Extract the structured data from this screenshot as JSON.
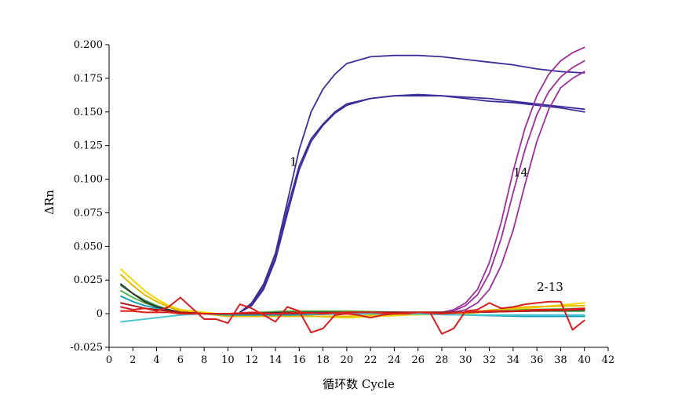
{
  "chart_data": {
    "type": "line",
    "title": "",
    "xlabel": "循环数 Cycle",
    "ylabel": "ΔRn",
    "xlim": [
      0,
      42
    ],
    "ylim": [
      -0.025,
      0.2
    ],
    "x_ticks": [
      "0",
      "2",
      "4",
      "6",
      "8",
      "10",
      "12",
      "14",
      "16",
      "18",
      "20",
      "22",
      "24",
      "26",
      "28",
      "30",
      "32",
      "34",
      "36",
      "38",
      "40",
      "42"
    ],
    "y_ticks": [
      "0.200",
      "0.175",
      "0.150",
      "0.125",
      "0.100",
      "0.075",
      "0.050",
      "0.025",
      "0",
      "-0.025"
    ],
    "grid": false,
    "annotations": [
      {
        "text": "1",
        "x": 15.2,
        "y": 0.11
      },
      {
        "text": "14",
        "x": 34.0,
        "y": 0.102
      },
      {
        "text": "2-13",
        "x": 36.0,
        "y": 0.017
      }
    ],
    "series": [
      {
        "group": "1",
        "color": "#3d2f99",
        "x": [
          11,
          12,
          13,
          14,
          15,
          16,
          17,
          18,
          19,
          20,
          22,
          24,
          26,
          28,
          30,
          32,
          34,
          36,
          38,
          40
        ],
        "y": [
          0.001,
          0.008,
          0.022,
          0.045,
          0.083,
          0.122,
          0.15,
          0.167,
          0.178,
          0.186,
          0.191,
          0.192,
          0.192,
          0.191,
          0.189,
          0.187,
          0.185,
          0.182,
          0.18,
          0.179
        ]
      },
      {
        "group": "1",
        "color": "#3d2f99",
        "x": [
          11,
          12,
          13,
          14,
          15,
          16,
          17,
          18,
          19,
          20,
          22,
          24,
          26,
          28,
          30,
          32,
          34,
          36,
          38,
          40
        ],
        "y": [
          0.001,
          0.007,
          0.02,
          0.042,
          0.078,
          0.11,
          0.13,
          0.141,
          0.15,
          0.156,
          0.16,
          0.162,
          0.163,
          0.162,
          0.161,
          0.16,
          0.158,
          0.156,
          0.154,
          0.152
        ]
      },
      {
        "group": "1",
        "color": "#3d2f99",
        "x": [
          11,
          12,
          13,
          14,
          15,
          16,
          17,
          18,
          19,
          20,
          22,
          24,
          26,
          28,
          30,
          32,
          34,
          36,
          38,
          40
        ],
        "y": [
          0.001,
          0.006,
          0.018,
          0.04,
          0.074,
          0.107,
          0.128,
          0.14,
          0.149,
          0.155,
          0.16,
          0.162,
          0.162,
          0.162,
          0.16,
          0.158,
          0.157,
          0.155,
          0.153,
          0.15
        ]
      },
      {
        "group": "14",
        "color": "#9b2f9b",
        "x": [
          27,
          28,
          29,
          30,
          31,
          32,
          33,
          34,
          35,
          36,
          37,
          38,
          39,
          40
        ],
        "y": [
          0.0,
          0.001,
          0.003,
          0.008,
          0.018,
          0.038,
          0.068,
          0.106,
          0.138,
          0.162,
          0.178,
          0.188,
          0.194,
          0.198
        ]
      },
      {
        "group": "14",
        "color": "#9b2f9b",
        "x": [
          27,
          28,
          29,
          30,
          31,
          32,
          33,
          34,
          35,
          36,
          37,
          38,
          39,
          40
        ],
        "y": [
          0.0,
          0.001,
          0.002,
          0.006,
          0.014,
          0.03,
          0.056,
          0.09,
          0.122,
          0.148,
          0.165,
          0.176,
          0.183,
          0.188
        ]
      },
      {
        "group": "14",
        "color": "#9b2f9b",
        "x": [
          27,
          28,
          29,
          30,
          31,
          32,
          33,
          34,
          35,
          36,
          37,
          38,
          39,
          40
        ],
        "y": [
          0.0,
          0.0,
          0.001,
          0.003,
          0.008,
          0.018,
          0.036,
          0.062,
          0.096,
          0.128,
          0.152,
          0.168,
          0.175,
          0.18
        ]
      },
      {
        "group": "2-13",
        "color": "#f2d600",
        "x": [
          1,
          2,
          3,
          4,
          5,
          6,
          8,
          10,
          15,
          20,
          25,
          30,
          35,
          40
        ],
        "y": [
          0.033,
          0.025,
          0.017,
          0.011,
          0.006,
          0.003,
          0.001,
          -0.001,
          -0.001,
          -0.003,
          -0.001,
          0.0,
          0.004,
          0.008
        ]
      },
      {
        "group": "2-13",
        "color": "#e8b800",
        "x": [
          1,
          2,
          3,
          4,
          5,
          6,
          8,
          10,
          15,
          20,
          25,
          30,
          35,
          40
        ],
        "y": [
          0.029,
          0.021,
          0.014,
          0.009,
          0.005,
          0.002,
          0.0,
          -0.002,
          -0.002,
          -0.002,
          0.0,
          0.001,
          0.005,
          0.006
        ]
      },
      {
        "group": "2-13",
        "color": "#2e9e4a",
        "x": [
          1,
          2,
          3,
          4,
          5,
          6,
          8,
          10,
          15,
          20,
          25,
          30,
          35,
          40
        ],
        "y": [
          0.021,
          0.015,
          0.01,
          0.006,
          0.003,
          0.001,
          0.0,
          0.0,
          0.001,
          0.001,
          0.0,
          0.001,
          0.002,
          0.002
        ]
      },
      {
        "group": "2-13",
        "color": "#5bb84a",
        "x": [
          1,
          2,
          3,
          4,
          5,
          6,
          8,
          10,
          15,
          20,
          25,
          30,
          35,
          40
        ],
        "y": [
          0.017,
          0.012,
          0.008,
          0.005,
          0.002,
          0.001,
          0.0,
          0.0,
          0.002,
          0.002,
          0.001,
          0.001,
          0.003,
          0.004
        ]
      },
      {
        "group": "2-13",
        "color": "#1a9fb8",
        "x": [
          1,
          2,
          3,
          4,
          5,
          6,
          8,
          10,
          15,
          20,
          25,
          30,
          35,
          40
        ],
        "y": [
          0.013,
          0.009,
          0.006,
          0.004,
          0.002,
          0.001,
          0.0,
          -0.001,
          -0.001,
          0.0,
          0.0,
          -0.001,
          -0.002,
          -0.002
        ]
      },
      {
        "group": "2-13",
        "color": "#4cc6cf",
        "x": [
          1,
          2,
          3,
          4,
          5,
          6,
          8,
          10,
          15,
          20,
          25,
          30,
          35,
          40
        ],
        "y": [
          -0.006,
          -0.005,
          -0.004,
          -0.003,
          -0.002,
          -0.001,
          0.0,
          0.0,
          0.0,
          0.0,
          0.0,
          -0.001,
          -0.001,
          -0.001
        ]
      },
      {
        "group": "2-13",
        "color": "#333333",
        "x": [
          1,
          2,
          3,
          4,
          5,
          6,
          8,
          10,
          15,
          20,
          25,
          30,
          35,
          40
        ],
        "y": [
          0.022,
          0.015,
          0.009,
          0.005,
          0.003,
          0.001,
          0.0,
          0.0,
          0.001,
          0.001,
          0.001,
          0.001,
          0.002,
          0.003
        ]
      },
      {
        "group": "2-13",
        "color": "#a81a1a",
        "x": [
          1,
          2,
          3,
          4,
          5,
          6,
          8,
          10,
          15,
          20,
          25,
          30,
          35,
          40
        ],
        "y": [
          0.008,
          0.006,
          0.004,
          0.003,
          0.002,
          0.001,
          0.0,
          0.0,
          0.0,
          0.001,
          0.001,
          0.001,
          0.002,
          0.003
        ]
      },
      {
        "group": "2-13",
        "color": "#d42020",
        "x": [
          1,
          2,
          3,
          4,
          5,
          6,
          7,
          8,
          9,
          10,
          11,
          12,
          13,
          14,
          15,
          16,
          17,
          18,
          19,
          20,
          21,
          22,
          23,
          24,
          25,
          26,
          27,
          28,
          29,
          30,
          31,
          32,
          33,
          34,
          35,
          36,
          37,
          38,
          39,
          40
        ],
        "y": [
          0.005,
          0.003,
          0.004,
          0.002,
          0.005,
          0.012,
          0.004,
          -0.004,
          -0.004,
          -0.007,
          0.007,
          0.004,
          -0.001,
          -0.006,
          0.005,
          0.002,
          -0.014,
          -0.011,
          -0.001,
          0.0,
          -0.001,
          -0.003,
          -0.001,
          0.0,
          0.0,
          0.001,
          0.001,
          -0.015,
          -0.011,
          0.002,
          0.003,
          0.008,
          0.004,
          0.005,
          0.007,
          0.008,
          0.009,
          0.009,
          -0.012,
          -0.005
        ]
      },
      {
        "group": "2-13",
        "color": "#e0201a",
        "x": [
          1,
          2,
          3,
          4,
          5,
          6,
          8,
          10,
          12,
          14,
          16,
          18,
          20,
          22,
          24,
          26,
          28,
          30,
          32,
          34,
          36,
          38,
          40
        ],
        "y": [
          0.002,
          0.002,
          0.001,
          0.001,
          0.001,
          0.0,
          0.0,
          0.0,
          0.001,
          0.0,
          0.001,
          0.0,
          0.001,
          0.001,
          0.0,
          0.001,
          0.0,
          0.001,
          0.002,
          0.002,
          0.003,
          0.003,
          0.004
        ]
      }
    ]
  }
}
